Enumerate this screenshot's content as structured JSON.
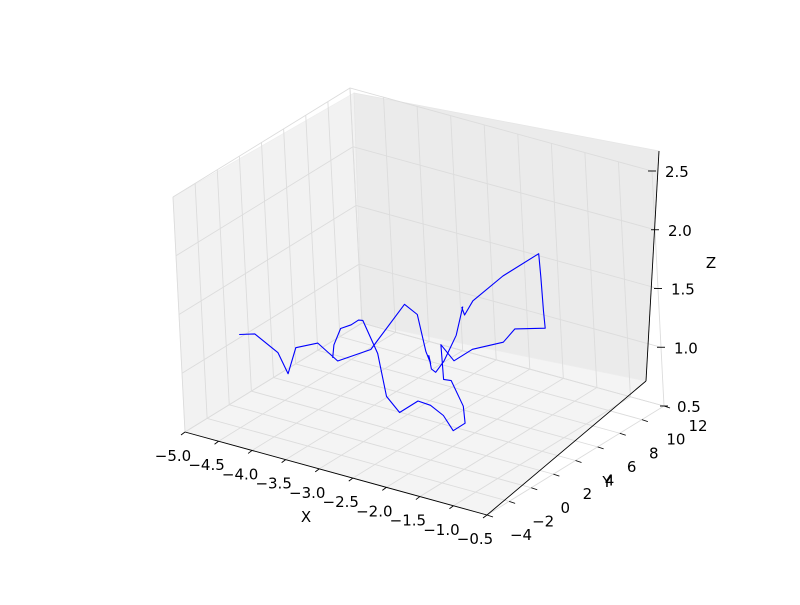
{
  "chart_data": {
    "type": "line",
    "projection": "3d",
    "xlabel": "X",
    "ylabel": "Y",
    "zlabel": "Z",
    "xlim": [
      -5.0,
      -0.5
    ],
    "ylim": [
      -4,
      12
    ],
    "zlim": [
      0.5,
      2.5
    ],
    "grid": true,
    "x_ticks": [
      "−5.0",
      "−4.5",
      "−4.0",
      "−3.5",
      "−3.0",
      "−2.5",
      "−2.0",
      "−1.5",
      "−1.0",
      "−0.5"
    ],
    "y_ticks": [
      "−4",
      "−2",
      "0",
      "2",
      "4",
      "6",
      "8",
      "10",
      "12"
    ],
    "z_ticks": [
      "0.5",
      "1.0",
      "1.5",
      "2.0",
      "2.5"
    ],
    "series": [
      {
        "color": "#0000ff",
        "x": [
          -4.45,
          -4.3,
          -4.05,
          -4.0,
          -3.95,
          -3.7,
          -3.5,
          -3.25,
          -3.05,
          -2.95,
          -2.85,
          -2.7,
          -2.55,
          -2.4,
          -2.2,
          -2.1,
          -2.0,
          -2.0,
          -2.1,
          -2.15,
          -2.1,
          -1.8,
          -1.5,
          -1.4,
          -1.3,
          -1.2,
          -1.4,
          -1.5,
          -1.8,
          -2.0,
          -2.1,
          -2.0,
          -1.8,
          -1.55,
          -1.45,
          -1.55,
          -1.6,
          -1.7,
          -1.8,
          -2.0,
          -2.1,
          -2.2,
          -2.4,
          -2.55,
          -2.75,
          -3.0,
          -3.2,
          -3.4
        ],
        "y": [
          -2.0,
          -1.5,
          -1.0,
          -0.5,
          0.0,
          0.5,
          1.0,
          2.5,
          4.5,
          5.0,
          5.0,
          4.5,
          3.5,
          2.8,
          2.0,
          2.2,
          2.8,
          3.5,
          4.0,
          4.5,
          5.0,
          6.0,
          7.5,
          7.0,
          6.5,
          6.0,
          4.5,
          4.0,
          3.0,
          2.5,
          2.0,
          1.5,
          1.0,
          0.5,
          0.0,
          -0.5,
          -1.0,
          -1.5,
          -2.0,
          -2.5,
          -3.0,
          -3.0,
          -3.0,
          -2.5,
          -2.0,
          -1.5,
          -1.0,
          0.0
        ],
        "z": [
          1.3,
          1.3,
          1.15,
          0.95,
          1.15,
          1.2,
          1.05,
          1.1,
          1.4,
          1.3,
          1.0,
          0.95,
          1.1,
          1.05,
          1.1,
          1.2,
          1.4,
          1.6,
          1.55,
          1.45,
          1.55,
          1.75,
          1.9,
          1.75,
          1.5,
          1.4,
          1.45,
          1.35,
          1.3,
          1.2,
          1.35,
          1.1,
          1.15,
          1.0,
          0.9,
          0.85,
          1.0,
          1.1,
          1.15,
          1.05,
          1.2,
          1.55,
          1.8,
          1.75,
          1.65,
          1.55,
          1.35,
          1.15
        ]
      }
    ]
  }
}
